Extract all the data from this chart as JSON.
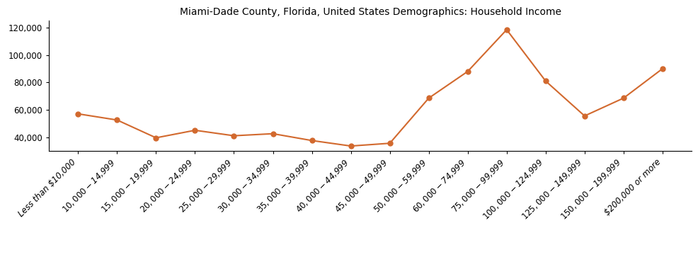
{
  "title": "Miami-Dade County, Florida, United States Demographics: Household Income",
  "categories": [
    "Less than $10,000",
    "$10,000 - $14,999",
    "$15,000 - $19,999",
    "$20,000 - $24,999",
    "$25,000 - $29,999",
    "$30,000 - $34,999",
    "$35,000 - $39,999",
    "$40,000 - $44,999",
    "$45,000 - $49,999",
    "$50,000 - $59,999",
    "$60,000 - $74,999",
    "$75,000 - $99,999",
    "$100,000 - $124,999",
    "$125,000 - $149,999",
    "$150,000 - $199,999",
    "$200,000 or more"
  ],
  "values": [
    57000,
    52500,
    39500,
    45000,
    41000,
    42500,
    37500,
    33500,
    35500,
    68500,
    88000,
    118500,
    81000,
    55500,
    68500,
    90000
  ],
  "line_color": "#d2692e",
  "marker": "o",
  "marker_size": 5,
  "linewidth": 1.5,
  "ylim": [
    30000,
    125000
  ],
  "yticks": [
    40000,
    60000,
    80000,
    100000,
    120000
  ],
  "background_color": "#ffffff",
  "title_fontsize": 10,
  "tick_fontsize": 8.5
}
